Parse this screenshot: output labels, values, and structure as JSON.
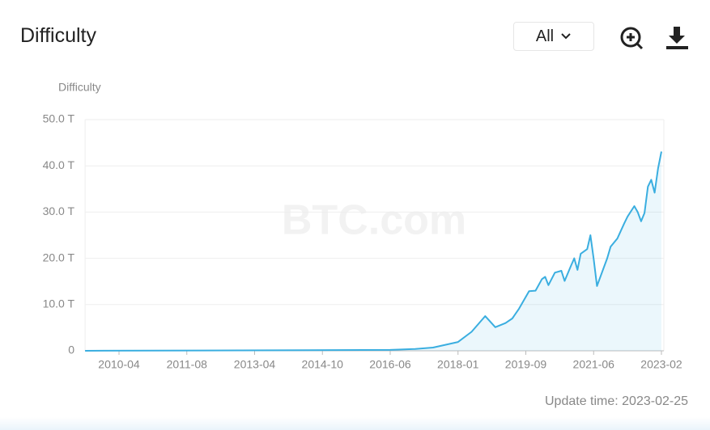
{
  "header": {
    "title": "Difficulty",
    "range_select": "All"
  },
  "chart_data": {
    "type": "area",
    "y_label": "Difficulty",
    "watermark": "BTC.com",
    "color": "#3aaee0",
    "grid": true,
    "x": [
      "2009-08",
      "2016-06",
      "2017-01",
      "2017-06",
      "2018-01",
      "2018-05",
      "2018-09",
      "2018-12",
      "2019-03",
      "2019-05",
      "2019-07",
      "2019-10",
      "2019-12",
      "2020-02",
      "2020-03",
      "2020-04",
      "2020-06",
      "2020-08",
      "2020-09",
      "2020-11",
      "2020-12",
      "2021-01",
      "2021-02",
      "2021-04",
      "2021-05",
      "2021-06",
      "2021-07",
      "2021-09",
      "2021-10",
      "2021-11",
      "2022-01",
      "2022-03",
      "2022-04",
      "2022-06",
      "2022-07",
      "2022-08",
      "2022-09",
      "2022-10",
      "2022-11",
      "2022-12",
      "2023-01",
      "2023-02"
    ],
    "values": [
      0,
      0.2,
      0.4,
      0.7,
      1.9,
      4.1,
      7.5,
      5.1,
      6.0,
      7.0,
      9.1,
      12.9,
      13.0,
      15.5,
      16.0,
      14.2,
      16.9,
      17.3,
      15.1,
      18.4,
      20.0,
      17.5,
      21.0,
      22.0,
      25.0,
      19.9,
      14.0,
      18.0,
      20.0,
      22.5,
      24.3,
      27.5,
      29.0,
      31.3,
      30.0,
      28.0,
      29.8,
      35.5,
      37.0,
      34.2,
      39.4,
      43.1
    ],
    "xlim": [
      "2009-08",
      "2023-02"
    ],
    "xticks": [
      "2010-04",
      "2011-08",
      "2013-04",
      "2014-10",
      "2016-06",
      "2018-01",
      "2019-09",
      "2021-06",
      "2023-02"
    ],
    "ylim": [
      0,
      50
    ],
    "yticks": [
      0,
      {
        "value": 10,
        "label": "10.0 T"
      },
      {
        "value": 20,
        "label": "20.0 T"
      },
      {
        "value": 30,
        "label": "30.0 T"
      },
      {
        "value": 40,
        "label": "40.0 T"
      },
      {
        "value": 50,
        "label": "50.0 T"
      }
    ]
  },
  "footer": {
    "update_time": "Update time: 2023-02-25"
  }
}
